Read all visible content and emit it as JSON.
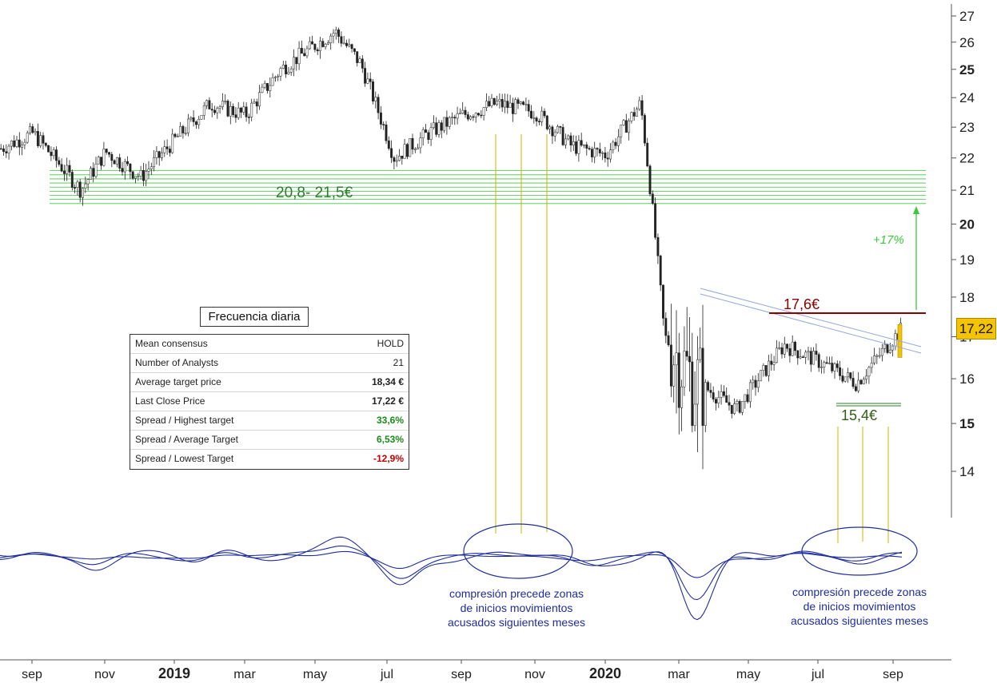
{
  "chart_data": {
    "type": "candlestick",
    "title": "",
    "frequency_label": "Frecuencia diaria",
    "y_axis": {
      "scale": "log",
      "ticks": [
        14,
        15,
        16,
        17,
        18,
        19,
        20,
        21,
        22,
        23,
        24,
        25,
        26,
        27
      ],
      "bold_ticks": [
        15,
        20,
        25
      ],
      "range": [
        13.2,
        27.5
      ]
    },
    "x_axis": {
      "ticks": [
        {
          "label": "sep",
          "bold": false
        },
        {
          "label": "nov",
          "bold": false
        },
        {
          "label": "2019",
          "bold": true
        },
        {
          "label": "mar",
          "bold": false
        },
        {
          "label": "may",
          "bold": false
        },
        {
          "label": "jul",
          "bold": false
        },
        {
          "label": "sep",
          "bold": false
        },
        {
          "label": "nov",
          "bold": false
        },
        {
          "label": "2020",
          "bold": true
        },
        {
          "label": "mar",
          "bold": false
        },
        {
          "label": "may",
          "bold": false
        },
        {
          "label": "jul",
          "bold": false
        },
        {
          "label": "sep",
          "bold": false
        }
      ]
    },
    "price_series_approx": {
      "months": [
        "2018-08",
        "2018-09",
        "2018-10",
        "2018-11",
        "2018-12",
        "2019-01",
        "2019-02",
        "2019-03",
        "2019-04",
        "2019-05",
        "2019-06",
        "2019-07",
        "2019-08",
        "2019-09",
        "2019-10",
        "2019-11",
        "2019-12",
        "2020-01",
        "2020-02",
        "2020-03",
        "2020-04",
        "2020-05",
        "2020-06",
        "2020-07",
        "2020-08",
        "2020-09"
      ],
      "close": [
        22.3,
        22.8,
        21.0,
        22.2,
        21.4,
        22.6,
        23.8,
        23.4,
        25.0,
        26.4,
        25.2,
        22.0,
        22.8,
        23.4,
        23.8,
        23.5,
        22.4,
        22.1,
        23.8,
        17.0,
        16.0,
        15.3,
        16.8,
        16.4,
        15.9,
        17.22
      ]
    },
    "last_price": "17,22",
    "support_zone": {
      "label": "20,8- 21,5€",
      "low": 20.6,
      "high": 21.6
    },
    "resistance": {
      "label": "17,6€",
      "value": 17.6
    },
    "support": {
      "label": "15,4€",
      "value": 15.45
    },
    "target_label": "+17%",
    "annotations": [
      "compresión precede zonas de inicios movimientos acusados siguientes meses",
      "compresión precede zonas de inicios movimientos acusados siguientes meses"
    ]
  },
  "consensus_table": {
    "rows": [
      {
        "label": "Mean consensus",
        "value": "HOLD",
        "style": ""
      },
      {
        "label": "Number of Analysts",
        "value": "21",
        "style": ""
      },
      {
        "label": "Average target price",
        "value": "18,34 €",
        "style": "bold"
      },
      {
        "label": "Last Close Price",
        "value": "17,22 €",
        "style": "bold"
      },
      {
        "label": "Spread / Highest target",
        "value": "33,6%",
        "style": "bold green"
      },
      {
        "label": "Spread / Average Target",
        "value": "6,53%",
        "style": "bold green"
      },
      {
        "label": "Spread / Lowest Target",
        "value": "-12,9%",
        "style": "bold red"
      }
    ]
  },
  "colors": {
    "candle": "#222222",
    "zone": "#3cc83c",
    "resistance": "#8b0000",
    "support": "#2e7d2e",
    "oscillator": "#1f2d9e",
    "annotation": "#1f2d9e",
    "guide": "#c8b400",
    "trend": "#8fa8d8",
    "price_tag": "#f5c400"
  }
}
